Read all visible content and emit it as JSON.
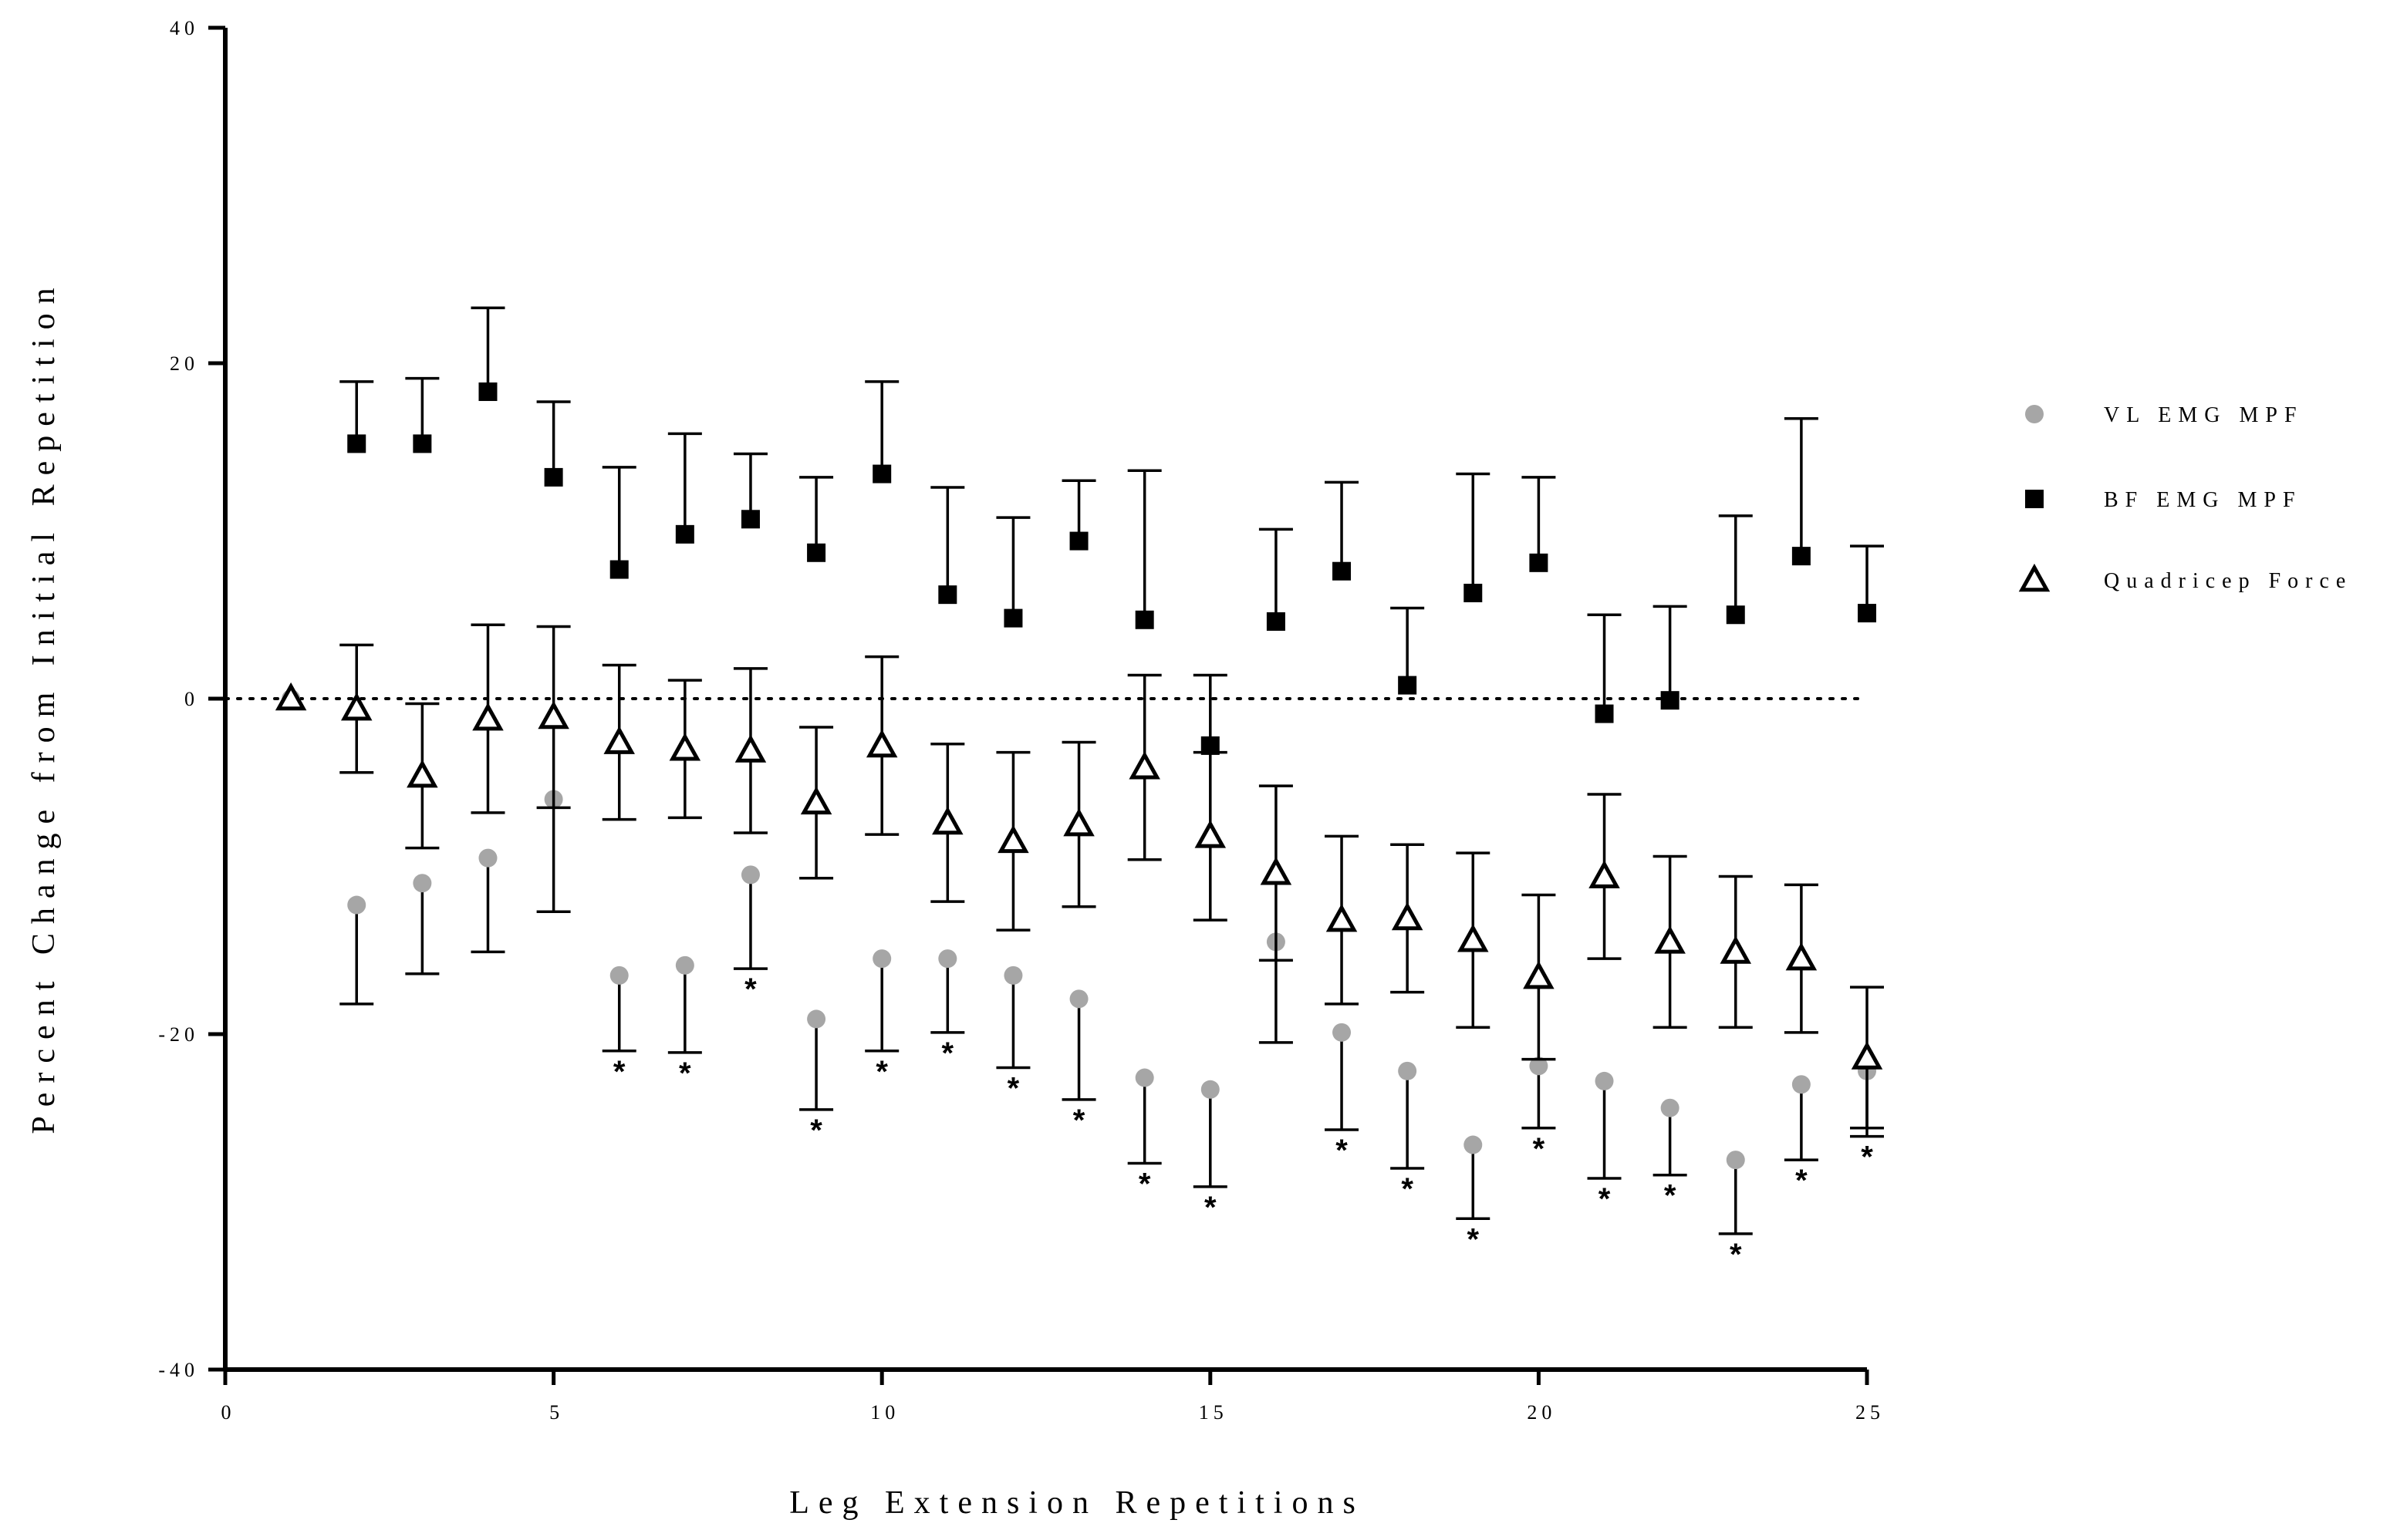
{
  "chart_data": {
    "type": "scatter",
    "title": "",
    "xlabel": "Leg Extension Repetitions",
    "ylabel": "Percent Change from Initial Repetition",
    "xlim": [
      0,
      25
    ],
    "ylim": [
      -40,
      40
    ],
    "xticks": [
      0,
      5,
      10,
      15,
      20,
      25
    ],
    "yticks": [
      -40,
      -20,
      0,
      20,
      40
    ],
    "xtick_labels": [
      "0",
      "5",
      "10",
      "15",
      "20",
      "25"
    ],
    "ytick_labels": [
      "-40",
      "-20",
      "0",
      "20",
      "40"
    ],
    "reference_line": {
      "y": 0,
      "style": "dotted"
    },
    "grid": false,
    "legend_position": "right",
    "series": [
      {
        "name": "VL EMG MPF",
        "marker": "circle",
        "color": "#a6a6a6",
        "error_bar": "down",
        "x": [
          1,
          2,
          3,
          4,
          5,
          6,
          7,
          8,
          9,
          10,
          11,
          12,
          13,
          14,
          15,
          16,
          17,
          18,
          19,
          20,
          21,
          22,
          23,
          24,
          25
        ],
        "y": [
          0,
          -12.3,
          -11,
          -9.5,
          -6,
          -16.5,
          -15.9,
          -10.5,
          -19.1,
          -15.5,
          -15.5,
          -16.5,
          -17.9,
          -22.6,
          -23.3,
          -14.5,
          -19.9,
          -22.2,
          -26.6,
          -21.9,
          -22.8,
          -24.4,
          -27.5,
          -23,
          -22.2
        ],
        "err": [
          0,
          5.9,
          5.4,
          5.6,
          6.7,
          4.5,
          5.2,
          5.6,
          5.4,
          5.5,
          4.4,
          5.5,
          6,
          5.1,
          5.8,
          6,
          5.8,
          5.8,
          4.4,
          3.7,
          5.8,
          4,
          4.4,
          4.5,
          3.9
        ],
        "significant": [
          false,
          false,
          false,
          false,
          false,
          true,
          true,
          true,
          true,
          true,
          true,
          true,
          true,
          true,
          true,
          false,
          true,
          true,
          true,
          true,
          true,
          true,
          true,
          true,
          true
        ]
      },
      {
        "name": "BF EMG MPF",
        "marker": "square",
        "color": "#000000",
        "error_bar": "up",
        "x": [
          2,
          3,
          4,
          5,
          6,
          7,
          8,
          9,
          10,
          11,
          12,
          13,
          14,
          15,
          16,
          17,
          18,
          19,
          20,
          21,
          22,
          23,
          24,
          25
        ],
        "y": [
          15.2,
          15.2,
          18.3,
          13.2,
          7.7,
          9.8,
          10.7,
          8.7,
          13.4,
          6.2,
          4.8,
          9.4,
          4.7,
          -2.8,
          4.6,
          7.6,
          0.8,
          6.3,
          8.1,
          -0.9,
          -0.1,
          5,
          8.5,
          5.1
        ],
        "err": [
          3.7,
          3.9,
          5,
          4.5,
          6.1,
          6,
          3.9,
          4.5,
          5.5,
          6.4,
          6,
          3.6,
          8.9,
          4.2,
          5.5,
          5.3,
          4.6,
          7.1,
          5.1,
          5.9,
          5.6,
          5.9,
          8.2,
          4
        ]
      },
      {
        "name": "Quadricep Force",
        "marker": "triangle-open",
        "color": "#000000",
        "error_bar": "both",
        "x": [
          1,
          2,
          3,
          4,
          5,
          6,
          7,
          8,
          9,
          10,
          11,
          12,
          13,
          14,
          15,
          16,
          17,
          18,
          19,
          20,
          21,
          22,
          23,
          24,
          25
        ],
        "y": [
          0,
          -0.6,
          -4.6,
          -1.2,
          -1.1,
          -2.6,
          -3,
          -3.1,
          -6.2,
          -2.8,
          -7.4,
          -8.5,
          -7.5,
          -4.1,
          -8.2,
          -10.4,
          -13.2,
          -13.1,
          -14.4,
          -16.6,
          -10.6,
          -14.5,
          -15.1,
          -15.5,
          -21.4
        ],
        "err": [
          0,
          3.8,
          4.3,
          5.6,
          5.4,
          4.6,
          4.1,
          4.9,
          4.5,
          5.3,
          4.7,
          5.3,
          4.9,
          5.5,
          5,
          5.2,
          5,
          4.4,
          5.2,
          4.9,
          4.9,
          5.1,
          4.5,
          4.4,
          4.2
        ]
      }
    ],
    "annotations": {
      "significance_marker": "*",
      "placement": "below VL EMG MPF error bars"
    }
  }
}
